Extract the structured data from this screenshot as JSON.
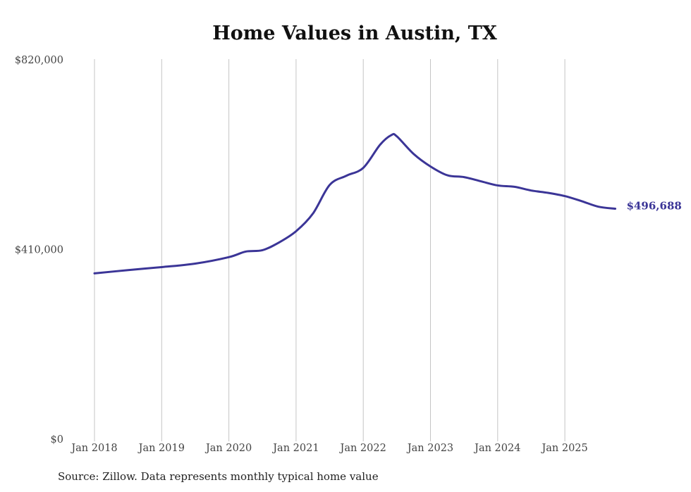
{
  "chart_data": {
    "type": "line",
    "title": "Home Values in Austin, TX",
    "xlabel": "",
    "ylabel": "",
    "ylim": [
      0,
      820000
    ],
    "xlim": [
      2018.0,
      2025.75
    ],
    "y_ticks": [
      {
        "value": 0,
        "label": "$0"
      },
      {
        "value": 410000,
        "label": "$410,000"
      },
      {
        "value": 820000,
        "label": "$820,000"
      }
    ],
    "x_ticks": [
      {
        "value": 2018,
        "label": "Jan 2018"
      },
      {
        "value": 2019,
        "label": "Jan 2019"
      },
      {
        "value": 2020,
        "label": "Jan 2020"
      },
      {
        "value": 2021,
        "label": "Jan 2021"
      },
      {
        "value": 2022,
        "label": "Jan 2022"
      },
      {
        "value": 2023,
        "label": "Jan 2023"
      },
      {
        "value": 2024,
        "label": "Jan 2024"
      },
      {
        "value": 2025,
        "label": "Jan 2025"
      }
    ],
    "grid": "vertical",
    "series": [
      {
        "name": "Typical home value",
        "color": "#3b3597",
        "x": [
          2018.0,
          2018.5,
          2019.0,
          2019.5,
          2020.0,
          2020.25,
          2020.5,
          2020.75,
          2021.0,
          2021.25,
          2021.5,
          2021.75,
          2022.0,
          2022.25,
          2022.42,
          2022.5,
          2022.75,
          2023.0,
          2023.25,
          2023.5,
          2023.75,
          2024.0,
          2024.25,
          2024.5,
          2024.75,
          2025.0,
          2025.25,
          2025.5,
          2025.75
        ],
        "values": [
          356900,
          364000,
          370500,
          378000,
          392000,
          404000,
          407000,
          424000,
          448000,
          486000,
          548000,
          568000,
          585000,
          635000,
          656000,
          653000,
          615000,
          588000,
          569000,
          565000,
          556000,
          547000,
          544000,
          536000,
          531000,
          524000,
          513000,
          501000,
          496688
        ]
      }
    ],
    "end_label": "$496,688",
    "source": "Source: Zillow. Data represents monthly typical home value"
  }
}
